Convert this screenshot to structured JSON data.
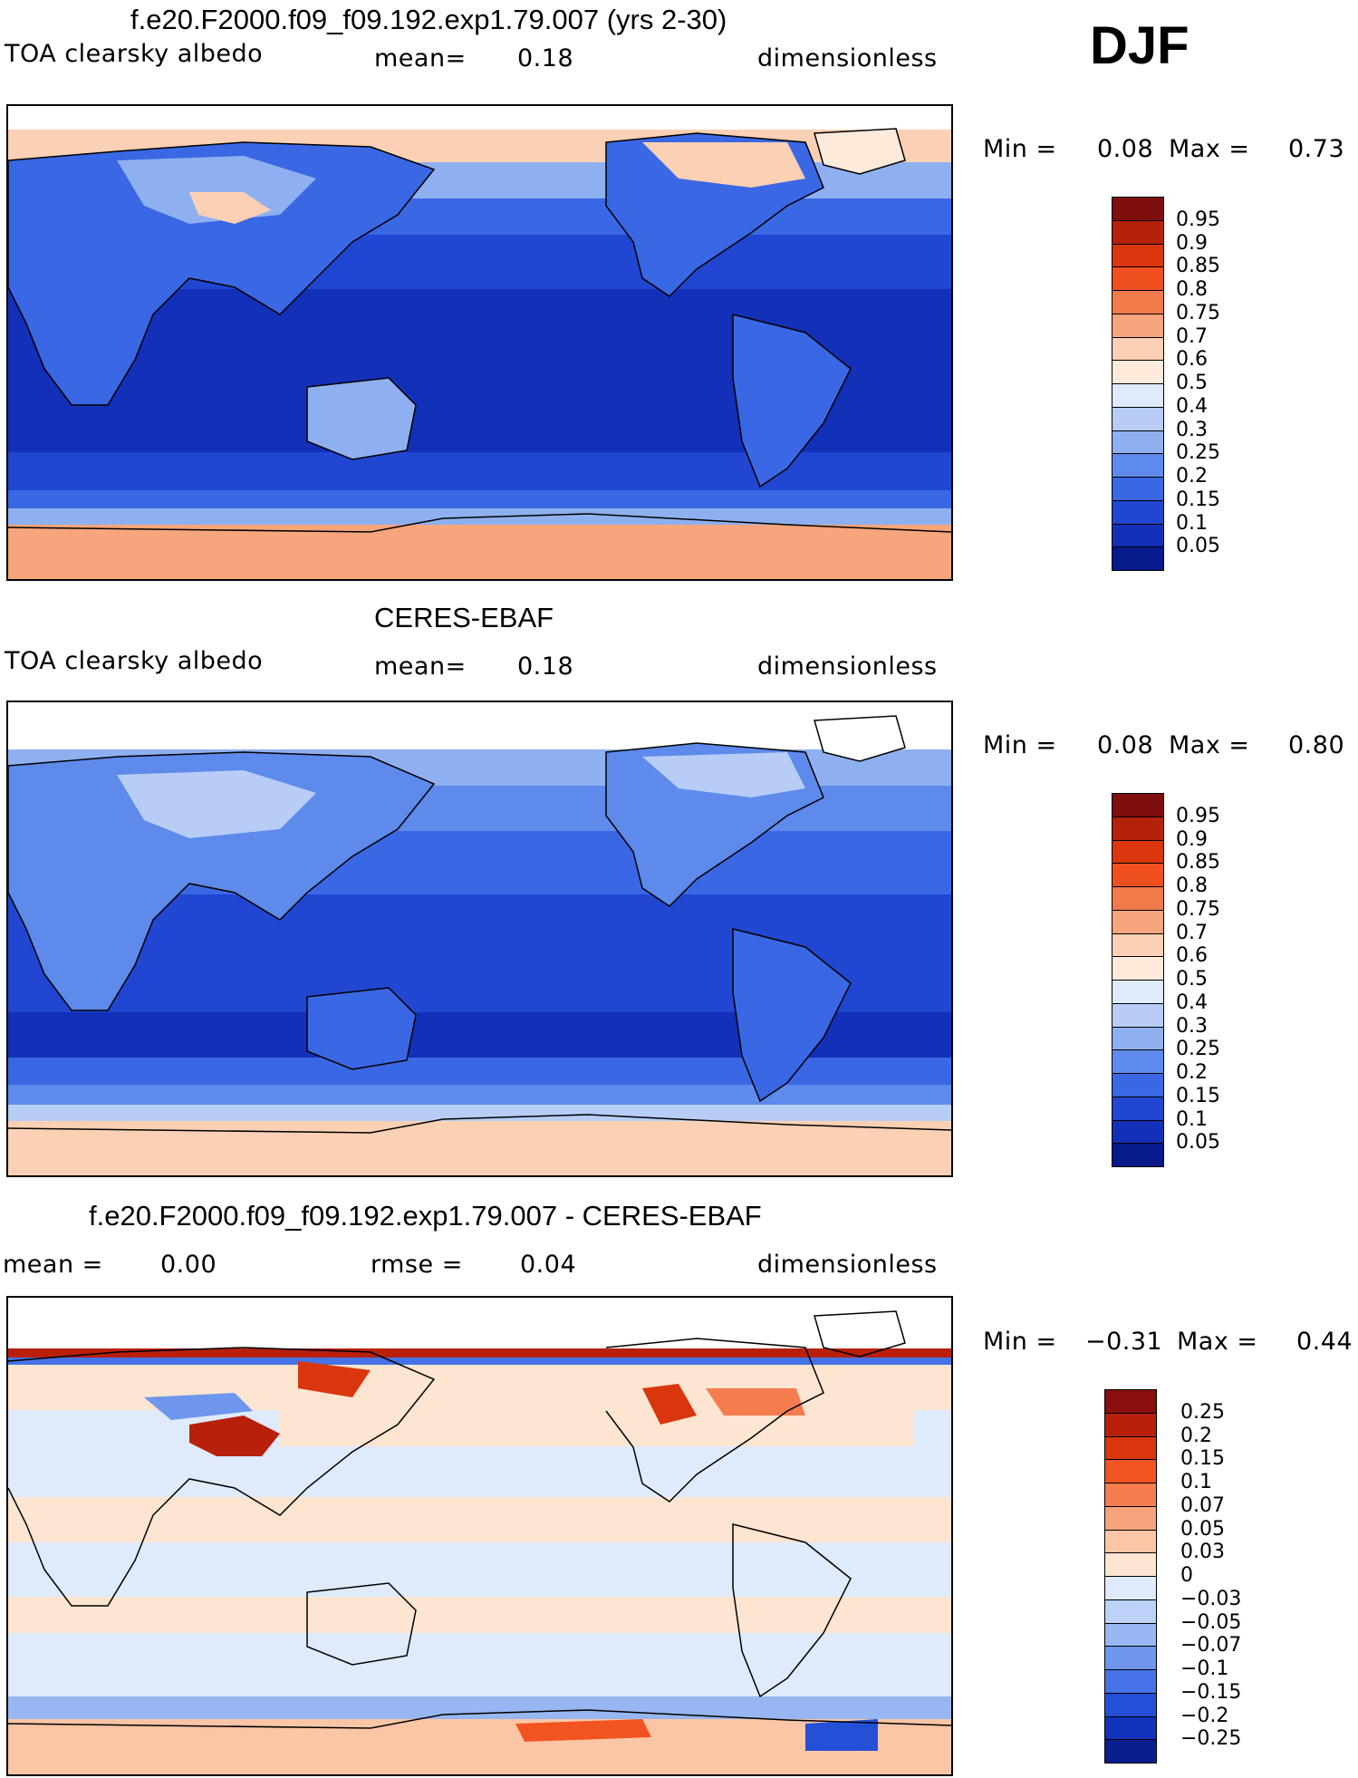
{
  "season": "DJF",
  "panels": [
    {
      "title": "f.e20.F2000.f09_f09.192.exp1.79.007 (yrs 2-30)",
      "left_label": "TOA clearsky albedo",
      "mid_label": "mean=",
      "mid_value": "0.18",
      "units": "dimensionless",
      "min_label": "Min =",
      "min_value": "0.08",
      "max_label": "Max =",
      "max_value": "0.73",
      "colorbar": [
        "0.95",
        "0.9",
        "0.85",
        "0.8",
        "0.75",
        "0.7",
        "0.6",
        "0.5",
        "0.4",
        "0.3",
        "0.25",
        "0.2",
        "0.15",
        "0.1",
        "0.05"
      ],
      "colors": [
        "#7f0f0f",
        "#b5220c",
        "#d9360d",
        "#f05020",
        "#f37a4a",
        "#f7a57c",
        "#fcd0b4",
        "#fdeadb",
        "#dfeafa",
        "#b7cdf6",
        "#8fb0f0",
        "#5d8aeb",
        "#3a67e4",
        "#2046d2",
        "#1230b8",
        "#08198a"
      ]
    },
    {
      "title": "CERES-EBAF",
      "left_label": "TOA clearsky albedo",
      "mid_label": "mean=",
      "mid_value": "0.18",
      "units": "dimensionless",
      "min_label": "Min =",
      "min_value": "0.08",
      "max_label": "Max =",
      "max_value": "0.80",
      "colorbar": [
        "0.95",
        "0.9",
        "0.85",
        "0.8",
        "0.75",
        "0.7",
        "0.6",
        "0.5",
        "0.4",
        "0.3",
        "0.25",
        "0.2",
        "0.15",
        "0.1",
        "0.05"
      ],
      "colors": [
        "#7f0f0f",
        "#b5220c",
        "#d9360d",
        "#f05020",
        "#f37a4a",
        "#f7a57c",
        "#fcd0b4",
        "#fdeadb",
        "#dfeafa",
        "#b7cdf6",
        "#8fb0f0",
        "#5d8aeb",
        "#3a67e4",
        "#2046d2",
        "#1230b8",
        "#08198a"
      ]
    },
    {
      "title": "f.e20.F2000.f09_f09.192.exp1.79.007 - CERES-EBAF",
      "left_label": "mean =",
      "left_value": "0.00",
      "mid_label": "rmse =",
      "mid_value": "0.04",
      "units": "dimensionless",
      "min_label": "Min =",
      "min_value": "−0.31",
      "max_label": "Max =",
      "max_value": "0.44",
      "colorbar": [
        "0.25",
        "0.2",
        "0.15",
        "0.1",
        "0.07",
        "0.05",
        "0.03",
        "0",
        "−0.03",
        "−0.05",
        "−0.07",
        "−0.1",
        "−0.15",
        "−0.2",
        "−0.25"
      ],
      "colors": [
        "#8a0f0f",
        "#b8200c",
        "#d9360d",
        "#f25421",
        "#f57d50",
        "#f7a47d",
        "#fbc6a6",
        "#fde5d2",
        "#dfeafa",
        "#bdd2f7",
        "#98b6f1",
        "#6f96ed",
        "#4573e7",
        "#2450d8",
        "#1233bb",
        "#0a1f8e"
      ]
    }
  ]
}
